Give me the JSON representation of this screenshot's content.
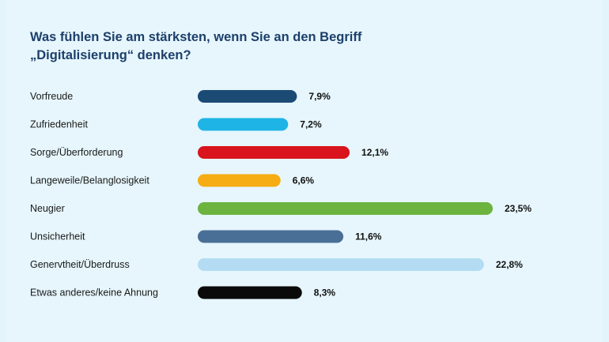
{
  "title_lines": [
    "Was fühlen Sie am stärksten, wenn Sie an den Begriff",
    "„Digitalisierung“ denken?"
  ],
  "chart_data": {
    "type": "bar",
    "orientation": "horizontal",
    "categories": [
      "Vorfreude",
      "Zufriedenheit",
      "Sorge/Überforderung",
      "Langeweile/Belanglosigkeit",
      "Neugier",
      "Unsicherheit",
      "Genervtheit/Überdruss",
      "Etwas anderes/keine Ahnung"
    ],
    "values": [
      7.9,
      7.2,
      12.1,
      6.6,
      23.5,
      11.6,
      22.8,
      8.3
    ],
    "value_labels": [
      "7,9%",
      "7,2%",
      "12,1%",
      "6,6%",
      "23,5%",
      "11,6%",
      "22,8%",
      "8,3%"
    ],
    "colors": [
      "#1b4b75",
      "#1fb4e6",
      "#d9141c",
      "#f6ad13",
      "#6cb33f",
      "#4a6f96",
      "#b3dcf3",
      "#0a0a0a"
    ],
    "xlim": [
      0,
      23.5
    ],
    "grid": false,
    "legend": "none"
  }
}
